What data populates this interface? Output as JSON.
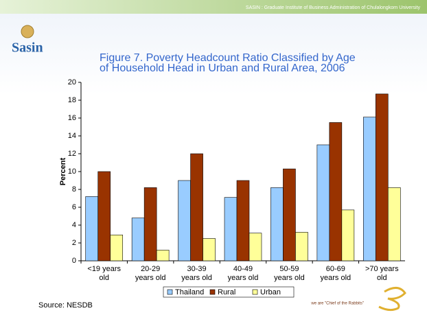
{
  "header": "SASIN : Graduate Institute of Business Administration of Chulalongkorn University",
  "logo_text": "Sasin",
  "source": "Source: NESDB",
  "slogan": "we are \"Chief of the Rabbits\"",
  "chart_data": {
    "type": "bar",
    "title": "Figure 7. Poverty Headcount Ratio Classified by Age of Household Head in Urban and Rural Area, 2006",
    "y_label": "Percent",
    "categories": [
      "<19 years old",
      "20-29 years old",
      "30-39 years old",
      "40-49 years old",
      "50-59 years old",
      "60-69 years old",
      ">70 years old"
    ],
    "series": [
      {
        "name": "Thailand",
        "color": "#99ccff",
        "values": [
          7.2,
          4.8,
          9,
          7.1,
          8.2,
          13,
          16.1
        ]
      },
      {
        "name": "Rural",
        "color": "#993300",
        "values": [
          10,
          8.2,
          12,
          9,
          10.3,
          15.5,
          18.7
        ]
      },
      {
        "name": "Urban",
        "color": "#ffff99",
        "values": [
          2.9,
          1.2,
          2.5,
          3.1,
          3.2,
          5.7,
          8.2
        ]
      }
    ],
    "ylim": [
      0,
      20
    ],
    "yticks": [
      0,
      2,
      4,
      6,
      8,
      10,
      12,
      14,
      16,
      18,
      20
    ],
    "grid": false,
    "legend": "bottom"
  }
}
